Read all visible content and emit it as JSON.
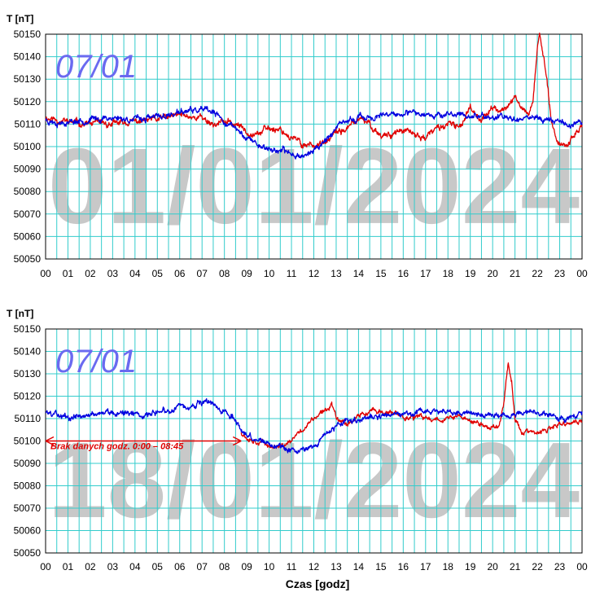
{
  "xlabel": "Czas [godz]",
  "ylabel": "T [nT]",
  "colors": {
    "red_series": "#e00000",
    "blue_series": "#0000e0",
    "grid": "#33cccc",
    "watermark": "#c8c8c8",
    "date_label": "#6a6af0"
  },
  "chart_data": [
    {
      "type": "line",
      "title": "01/01/2024",
      "date_label": "07/01",
      "ylabel": "T [nT]",
      "xlabel": "",
      "xlim": [
        0,
        24
      ],
      "ylim": [
        50050,
        50150
      ],
      "yticks": [
        "50150",
        "50140",
        "50130",
        "50120",
        "50110",
        "50100",
        "50090",
        "50080",
        "50070",
        "50060",
        "50050"
      ],
      "xticks": [
        "00",
        "01",
        "02",
        "03",
        "04",
        "05",
        "06",
        "07",
        "08",
        "09",
        "10",
        "11",
        "12",
        "13",
        "14",
        "15",
        "16",
        "17",
        "18",
        "19",
        "20",
        "21",
        "22",
        "23",
        "00"
      ],
      "series": [
        {
          "name": "red",
          "color": "#e00000",
          "x": [
            0,
            0.5,
            1,
            2,
            3,
            4,
            5,
            6,
            7,
            7.5,
            8,
            8.5,
            9,
            9.5,
            10,
            10.5,
            11,
            11.5,
            12,
            12.5,
            13,
            13.5,
            14,
            14.5,
            15,
            15.5,
            16,
            16.5,
            17,
            17.5,
            18,
            18.5,
            19,
            19.5,
            20,
            20.5,
            21,
            21.3,
            21.6,
            21.8,
            22,
            22.1,
            22.3,
            22.6,
            22.8,
            23,
            23.3,
            23.6,
            24
          ],
          "values": [
            50113,
            50112,
            50111,
            50110,
            50110,
            50111,
            50112,
            50114,
            50113,
            50110,
            50111,
            50110,
            50107,
            50106,
            50108,
            50108,
            50104,
            50101,
            50101,
            50101,
            50106,
            50108,
            50112,
            50110,
            50105,
            50106,
            50107,
            50105,
            50104,
            50108,
            50110,
            50108,
            50118,
            50112,
            50117,
            50116,
            50122,
            50117,
            50115,
            50120,
            50144,
            50150,
            50138,
            50115,
            50105,
            50101,
            50101,
            50104,
            50110
          ],
          "noise": 1.5,
          "seed": 11
        },
        {
          "name": "blue",
          "color": "#0000e0",
          "x": [
            0,
            0.5,
            1,
            2,
            3,
            4,
            5,
            6,
            6.5,
            7,
            7.5,
            8,
            8.5,
            9,
            9.5,
            10,
            10.5,
            11,
            11.5,
            12,
            12.5,
            13,
            13.5,
            14,
            14.5,
            15,
            15.5,
            16,
            17,
            18,
            19,
            20,
            21,
            22,
            22.5,
            23,
            23.5,
            24
          ],
          "values": [
            50112,
            50111,
            50111,
            50112,
            50113,
            50112,
            50113,
            50115,
            50116,
            50116,
            50115,
            50111,
            50108,
            50104,
            50101,
            50099,
            50098,
            50097,
            50096,
            50098,
            50103,
            50108,
            50111,
            50113,
            50113,
            50113,
            50114,
            50114,
            50115,
            50114,
            50114,
            50113,
            50113,
            50113,
            50112,
            50111,
            50110,
            50111
          ],
          "noise": 1.4,
          "seed": 23
        }
      ]
    },
    {
      "type": "line",
      "title": "18/01/2024",
      "date_label": "07/01",
      "ylabel": "T [nT]",
      "xlabel": "Czas [godz]",
      "xlim": [
        0,
        24
      ],
      "ylim": [
        50050,
        50150
      ],
      "yticks": [
        "50150",
        "50140",
        "50130",
        "50120",
        "50110",
        "50100",
        "50090",
        "50080",
        "50070",
        "50060",
        "50050"
      ],
      "xticks": [
        "00",
        "01",
        "02",
        "03",
        "04",
        "05",
        "06",
        "07",
        "08",
        "09",
        "10",
        "11",
        "12",
        "13",
        "14",
        "15",
        "16",
        "17",
        "18",
        "19",
        "20",
        "21",
        "22",
        "23",
        "00"
      ],
      "annotation": {
        "text": "Brak danych godz. 0:00 – 08:45",
        "x_start": 0,
        "x_end": 8.75,
        "y": 50100
      },
      "series": [
        {
          "name": "red",
          "color": "#e00000",
          "x": [
            8.75,
            9,
            9.5,
            10,
            10.5,
            11,
            11.5,
            12,
            12.5,
            12.8,
            13,
            13.5,
            14,
            14.5,
            15,
            15.5,
            16,
            17,
            18,
            18.5,
            19,
            19.5,
            20,
            20.3,
            20.5,
            20.7,
            20.85,
            21,
            21.3,
            21.6,
            22,
            22.5,
            23,
            23.5,
            24
          ],
          "values": [
            50104,
            50102,
            50100,
            50098,
            50097,
            50100,
            50105,
            50110,
            50113,
            50117,
            50111,
            50108,
            50111,
            50113,
            50113,
            50112,
            50111,
            50110,
            50110,
            50111,
            50109,
            50107,
            50106,
            50107,
            50118,
            50135,
            50127,
            50110,
            50104,
            50104,
            50103,
            50105,
            50107,
            50108,
            50109
          ],
          "noise": 1.2,
          "seed": 37
        },
        {
          "name": "blue",
          "color": "#0000e0",
          "x": [
            0,
            0.5,
            1,
            2,
            3,
            4,
            5,
            6,
            6.5,
            7,
            7.5,
            8,
            8.5,
            9,
            9.5,
            10,
            10.5,
            11,
            11.5,
            12,
            12.5,
            13,
            13.5,
            14,
            15,
            16,
            17,
            18,
            19,
            20,
            21,
            22,
            22.5,
            23,
            23.5,
            24
          ],
          "values": [
            50113,
            50112,
            50111,
            50112,
            50113,
            50112,
            50113,
            50115,
            50116,
            50117,
            50116,
            50113,
            50110,
            50102,
            50100,
            50099,
            50097,
            50096,
            50096,
            50099,
            50103,
            50107,
            50109,
            50110,
            50111,
            50112,
            50113,
            50113,
            50112,
            50112,
            50112,
            50113,
            50112,
            50111,
            50110,
            50111
          ],
          "noise": 1.4,
          "seed": 59
        }
      ]
    }
  ]
}
